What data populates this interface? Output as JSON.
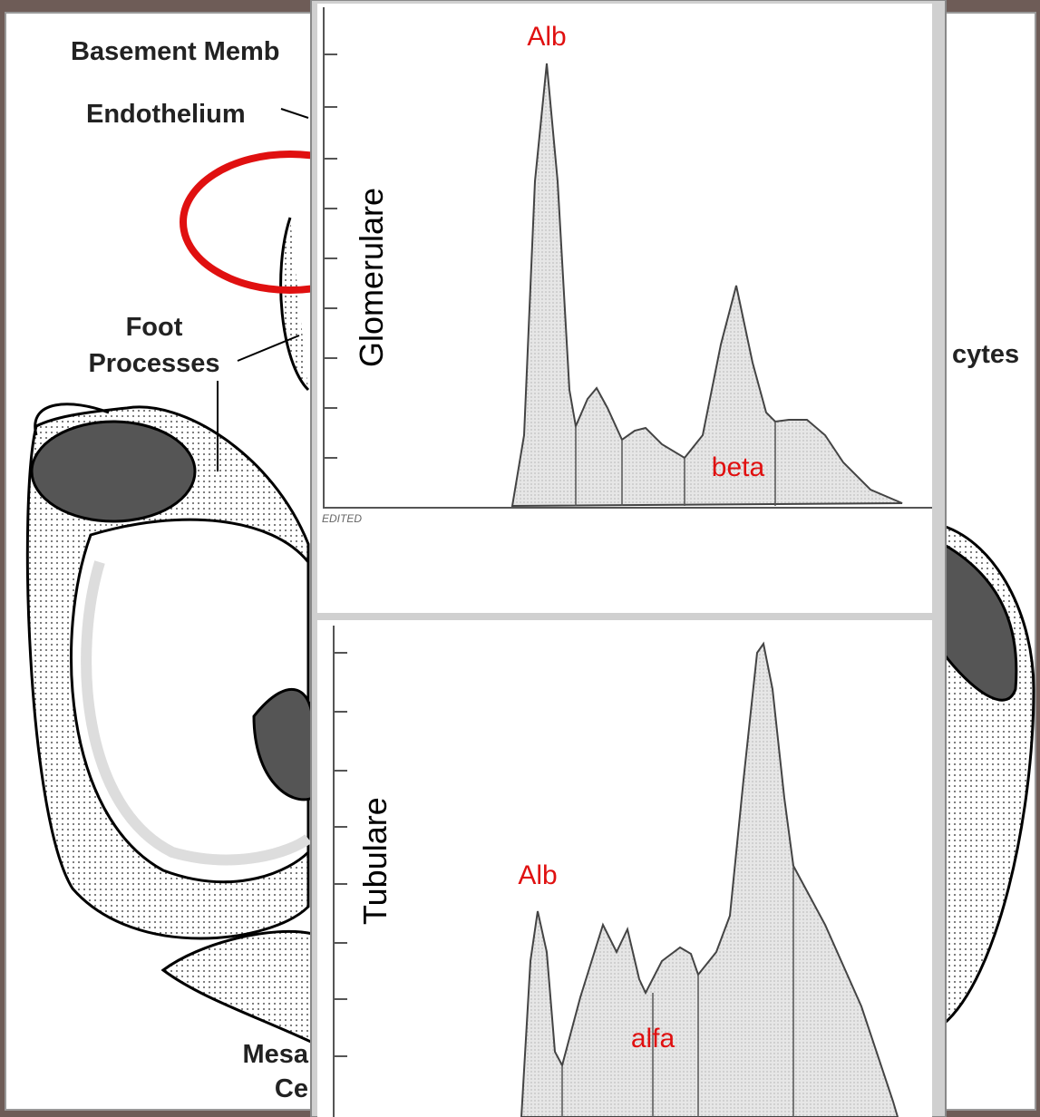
{
  "background": {
    "labels": [
      "Basement Memb",
      "Endothelium",
      "Foot",
      "Processes",
      "cytes",
      "Mesa",
      "Ce"
    ]
  },
  "panels": [
    {
      "axis_label": "Glomerulare",
      "peak_labels": [
        "Alb",
        "beta"
      ],
      "stamp": "EDITED"
    },
    {
      "axis_label": "Tubulare",
      "peak_labels": [
        "Alb",
        "alfa"
      ]
    }
  ]
}
